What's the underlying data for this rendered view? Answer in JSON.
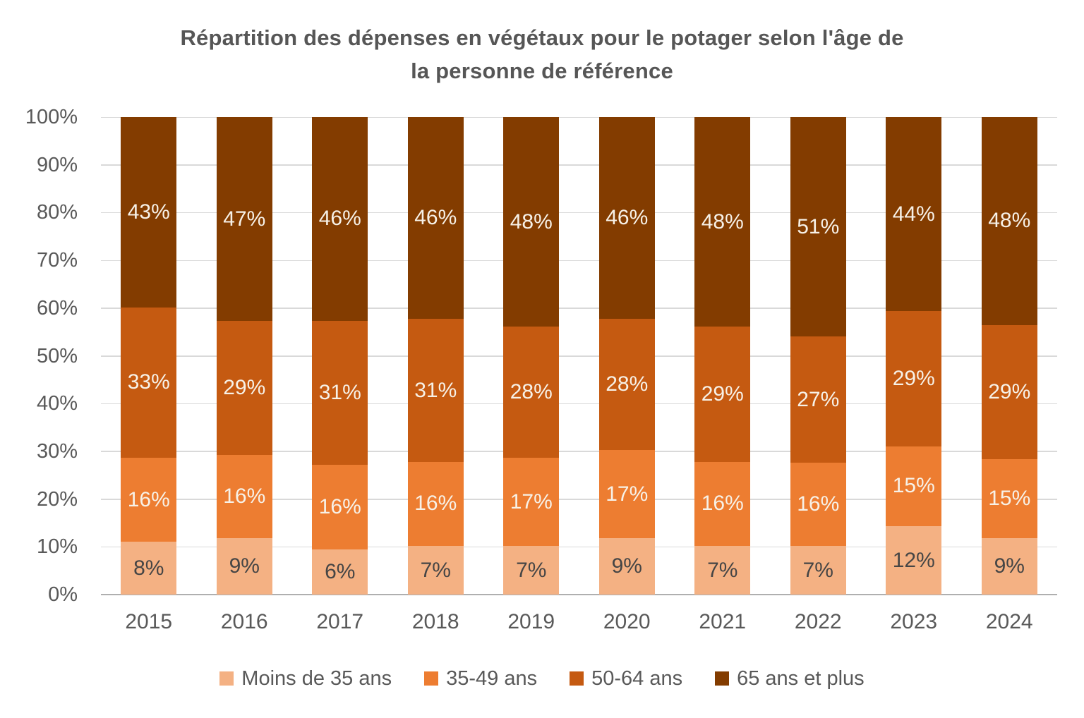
{
  "title": {
    "line1": "Répartition des dépenses en végétaux pour le potager selon l'âge de",
    "line2": "la personne de référence"
  },
  "chart_data": {
    "type": "bar",
    "variant": "stacked-100-percent-vertical",
    "title": "Répartition des dépenses en végétaux pour le potager selon l'âge de la personne de référence",
    "categories": [
      "2015",
      "2016",
      "2017",
      "2018",
      "2019",
      "2020",
      "2021",
      "2022",
      "2023",
      "2024"
    ],
    "series": [
      {
        "name": "Moins de 35 ans",
        "color": "#F4B183",
        "label_color": "#454545",
        "values": [
          8,
          9,
          6,
          7,
          7,
          9,
          7,
          7,
          12,
          9
        ]
      },
      {
        "name": "35-49 ans",
        "color": "#ED7D31",
        "label_color": "#F7F1E7",
        "values": [
          16,
          16,
          16,
          16,
          17,
          17,
          16,
          16,
          15,
          15
        ]
      },
      {
        "name": "50-64 ans",
        "color": "#C55A11",
        "label_color": "#F7F1E7",
        "values": [
          33,
          29,
          31,
          31,
          28,
          28,
          29,
          27,
          29,
          29
        ]
      },
      {
        "name": "65 ans et plus",
        "color": "#833C00",
        "label_color": "#F7F1E7",
        "values": [
          43,
          47,
          46,
          46,
          48,
          46,
          48,
          51,
          44,
          48
        ]
      }
    ],
    "value_suffix": "%",
    "y_axis": {
      "min": 0,
      "max": 100,
      "step": 10,
      "tick_labels": [
        "0%",
        "10%",
        "20%",
        "30%",
        "40%",
        "50%",
        "60%",
        "70%",
        "80%",
        "90%",
        "100%"
      ]
    },
    "grid": true,
    "legend_position": "bottom",
    "style_colors": {
      "grid_line": "#D9D9D9",
      "axis_line": "#AFAFAF",
      "axis_text": "#595959",
      "title_text": "#565656",
      "background": "#FFFFFF"
    }
  }
}
